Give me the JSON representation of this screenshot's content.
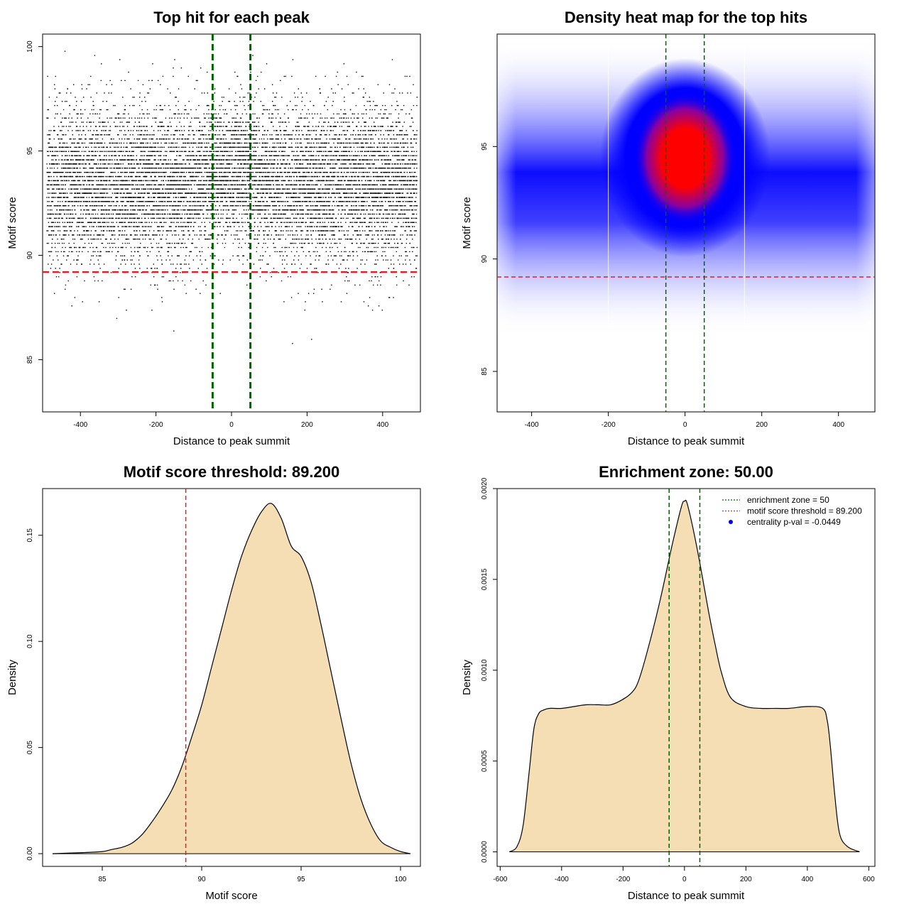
{
  "chart_data": [
    {
      "type": "scatter",
      "title": "Top hit for each peak",
      "xlabel": "Distance to peak summit",
      "ylabel": "Motif score",
      "xlim": [
        -500,
        500
      ],
      "ylim": [
        82.5,
        100.6
      ],
      "xticks": [
        "-400",
        "-200",
        "0",
        "200",
        "400"
      ],
      "yticks": [
        "85",
        "90",
        "95",
        "100"
      ],
      "score_threshold": 89.2,
      "enrichment_zone": 50,
      "point_color": "#000000",
      "threshold_color": "#dd2222",
      "zone_color": "#006400",
      "points_note_density": "dense cloud, x uniform in [-490, 490], y centred near 93.5 with sd about 2"
    },
    {
      "type": "heatmap",
      "title": "Density heat map for the top hits",
      "xlabel": "Distance to peak summit",
      "ylabel": "Motif score",
      "xlim": [
        -490,
        495
      ],
      "ylim": [
        83.2,
        100.0
      ],
      "xticks": [
        "-400",
        "-200",
        "0",
        "200",
        "400"
      ],
      "yticks": [
        "85",
        "90",
        "95"
      ],
      "score_threshold": 89.2,
      "enrichment_zone": 50,
      "low_color": "#ffffff",
      "mid_color": "#0000ff",
      "high_color": "#ff0000",
      "hotspot": {
        "x": 0,
        "y": 94.5
      }
    },
    {
      "type": "area",
      "title": "Motif score threshold: 89.200",
      "xlabel": "Motif score",
      "ylabel": "Density",
      "xlim": [
        82,
        101
      ],
      "ylim": [
        -0.006,
        0.172
      ],
      "xticks": [
        "85",
        "90",
        "95",
        "100"
      ],
      "yticks": [
        "0.00",
        "0.05",
        "0.10",
        "0.15"
      ],
      "fill_color": "#f5deb3",
      "threshold": 89.2,
      "x": [
        82.5,
        84,
        85,
        85.5,
        86,
        86.5,
        87,
        87.5,
        88,
        88.5,
        89,
        89.5,
        90,
        90.5,
        91,
        91.5,
        92,
        92.5,
        93,
        93.5,
        94,
        94.5,
        95,
        95.5,
        96,
        96.5,
        97,
        97.5,
        98,
        98.5,
        99,
        99.5,
        100,
        100.5
      ],
      "y": [
        0.0,
        0.0005,
        0.001,
        0.002,
        0.003,
        0.005,
        0.009,
        0.015,
        0.022,
        0.03,
        0.041,
        0.055,
        0.07,
        0.088,
        0.106,
        0.124,
        0.14,
        0.152,
        0.161,
        0.165,
        0.158,
        0.145,
        0.14,
        0.128,
        0.108,
        0.086,
        0.064,
        0.043,
        0.026,
        0.014,
        0.006,
        0.003,
        0.001,
        0.0
      ]
    },
    {
      "type": "area",
      "title": "Enrichment zone: 50.00",
      "xlabel": "Distance to peak summit",
      "ylabel": "Density",
      "xlim": [
        -610,
        620
      ],
      "ylim": [
        -8e-05,
        0.002
      ],
      "xticks": [
        "-600",
        "-400",
        "-200",
        "0",
        "200",
        "400",
        "600"
      ],
      "yticks": [
        "0.0000",
        "0.0005",
        "0.0010",
        "0.0015",
        "0.0020"
      ],
      "fill_color": "#f5deb3",
      "enrichment_zone": 50,
      "x": [
        -570,
        -545,
        -525,
        -505,
        -490,
        -475,
        -460,
        -440,
        -400,
        -360,
        -320,
        -280,
        -240,
        -200,
        -170,
        -150,
        -120,
        -80,
        -40,
        -10,
        0,
        10,
        40,
        80,
        100,
        120,
        150,
        200,
        250,
        300,
        340,
        400,
        450,
        465,
        475,
        490,
        505,
        530,
        570
      ],
      "y": [
        0.0,
        3e-05,
        0.00015,
        0.00045,
        0.00068,
        0.00076,
        0.00078,
        0.00079,
        0.00079,
        0.0008,
        0.00081,
        0.00081,
        0.00081,
        0.00084,
        0.00088,
        0.00094,
        0.00111,
        0.00138,
        0.00169,
        0.0019,
        0.00193,
        0.00191,
        0.00168,
        0.00131,
        0.00114,
        0.00099,
        0.00085,
        0.0008,
        0.00079,
        0.00079,
        0.00079,
        0.0008,
        0.00079,
        0.00072,
        0.00058,
        0.0003,
        0.0001,
        3e-05,
        0.0
      ],
      "legend": [
        {
          "label": "enrichment zone = 50",
          "color": "#006400",
          "style": "dotted-line"
        },
        {
          "label": "motif score threshold = 89.200",
          "color": "#dd2222",
          "style": "dotted-line"
        },
        {
          "label": "centrality p-val = -0.0449",
          "color": "#0000ff",
          "style": "point"
        }
      ],
      "legend_position": "top-right"
    }
  ]
}
